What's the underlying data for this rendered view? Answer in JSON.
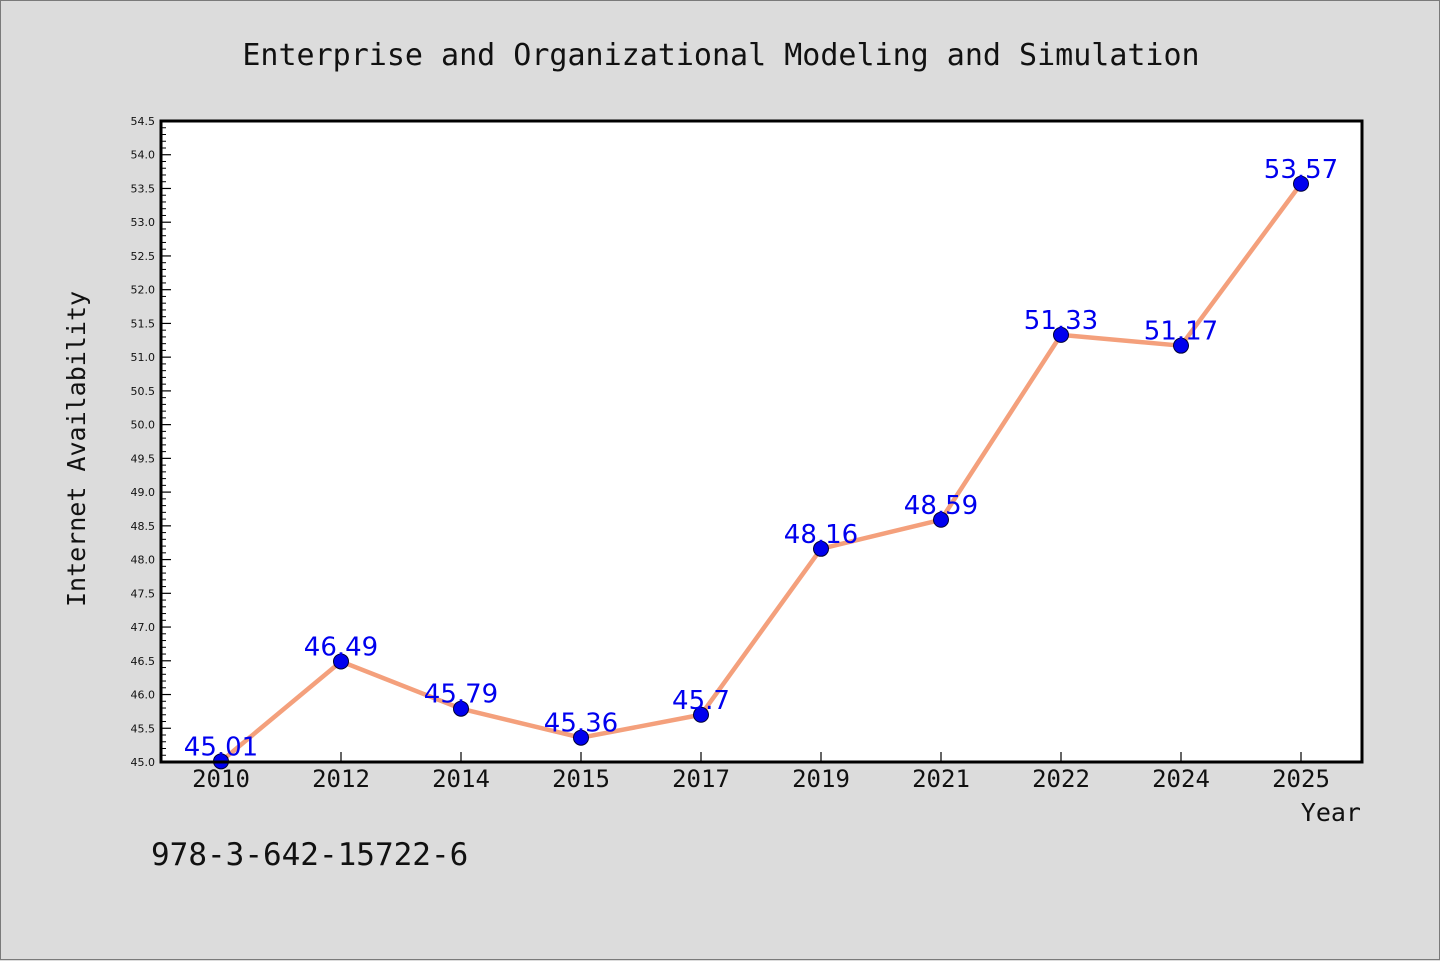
{
  "chart_data": {
    "type": "line",
    "title": "Enterprise and Organizational Modeling and Simulation",
    "xlabel": "Year",
    "ylabel": "Internet Availability",
    "categories": [
      "2010",
      "2012",
      "2014",
      "2015",
      "2017",
      "2019",
      "2021",
      "2022",
      "2024",
      "2025"
    ],
    "series": [
      {
        "values": [
          45.01,
          46.49,
          45.79,
          45.36,
          45.7,
          48.16,
          48.59,
          51.33,
          51.17,
          53.57
        ],
        "labels": [
          "45.01",
          "46.49",
          "45.79",
          "45.36",
          "45.7",
          "48.16",
          "48.59",
          "51.33",
          "51.17",
          "53.57"
        ]
      }
    ],
    "ylim": [
      45.0,
      54.5
    ],
    "yticks": [
      "45.0",
      "45.5",
      "46.0",
      "46.5",
      "47.0",
      "47.5",
      "48.0",
      "48.5",
      "49.0",
      "49.5",
      "50.0",
      "50.5",
      "51.0",
      "51.5",
      "52.0",
      "52.5",
      "53.0",
      "53.5",
      "54.0",
      "54.5"
    ],
    "grid": false,
    "colors": {
      "line": "#f4a07c",
      "marker": "#0000ee",
      "label": "#0000ee"
    }
  },
  "footer": {
    "text": "978-3-642-15722-6"
  }
}
